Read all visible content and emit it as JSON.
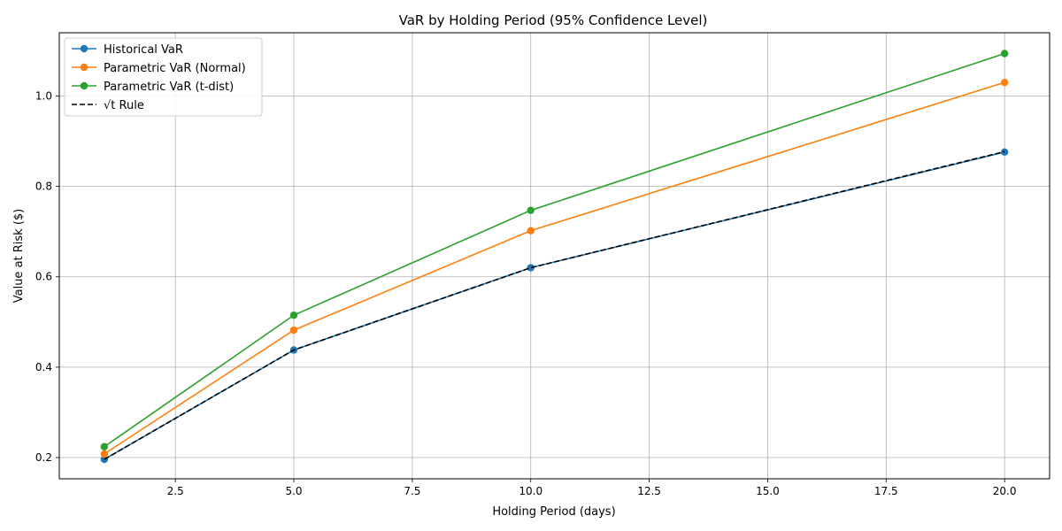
{
  "chart_data": {
    "type": "line",
    "title": "VaR by Holding Period (95% Confidence Level)",
    "xlabel": "Holding Period (days)",
    "ylabel": "Value at Risk ($)",
    "xlim": [
      0.05,
      20.95
    ],
    "ylim": [
      0.153,
      1.14
    ],
    "xticks": [
      2.5,
      5.0,
      7.5,
      10.0,
      12.5,
      15.0,
      17.5,
      20.0
    ],
    "xtick_labels": [
      "2.5",
      "5.0",
      "7.5",
      "10.0",
      "12.5",
      "15.0",
      "17.5",
      "20.0"
    ],
    "yticks": [
      0.2,
      0.4,
      0.6,
      0.8,
      1.0
    ],
    "ytick_labels": [
      "0.2",
      "0.4",
      "0.6",
      "0.8",
      "1.0"
    ],
    "grid": true,
    "legend_position": "top-left",
    "x": [
      1,
      5,
      10,
      20
    ],
    "series": [
      {
        "name": "Historical VaR",
        "values": [
          0.196,
          0.438,
          0.62,
          0.876
        ],
        "color": "#1f77b4",
        "style": "solid",
        "marker": "circle"
      },
      {
        "name": "Parametric VaR (Normal)",
        "values": [
          0.208,
          0.482,
          0.702,
          1.03
        ],
        "color": "#ff7f0e",
        "style": "solid",
        "marker": "circle"
      },
      {
        "name": "Parametric VaR (t-dist)",
        "values": [
          0.224,
          0.515,
          0.747,
          1.094
        ],
        "color": "#2ca02c",
        "style": "solid",
        "marker": "circle"
      },
      {
        "name": "√t Rule",
        "values": [
          0.196,
          0.438,
          0.62,
          0.877
        ],
        "color": "#000000",
        "style": "dashed",
        "marker": "none"
      }
    ]
  }
}
